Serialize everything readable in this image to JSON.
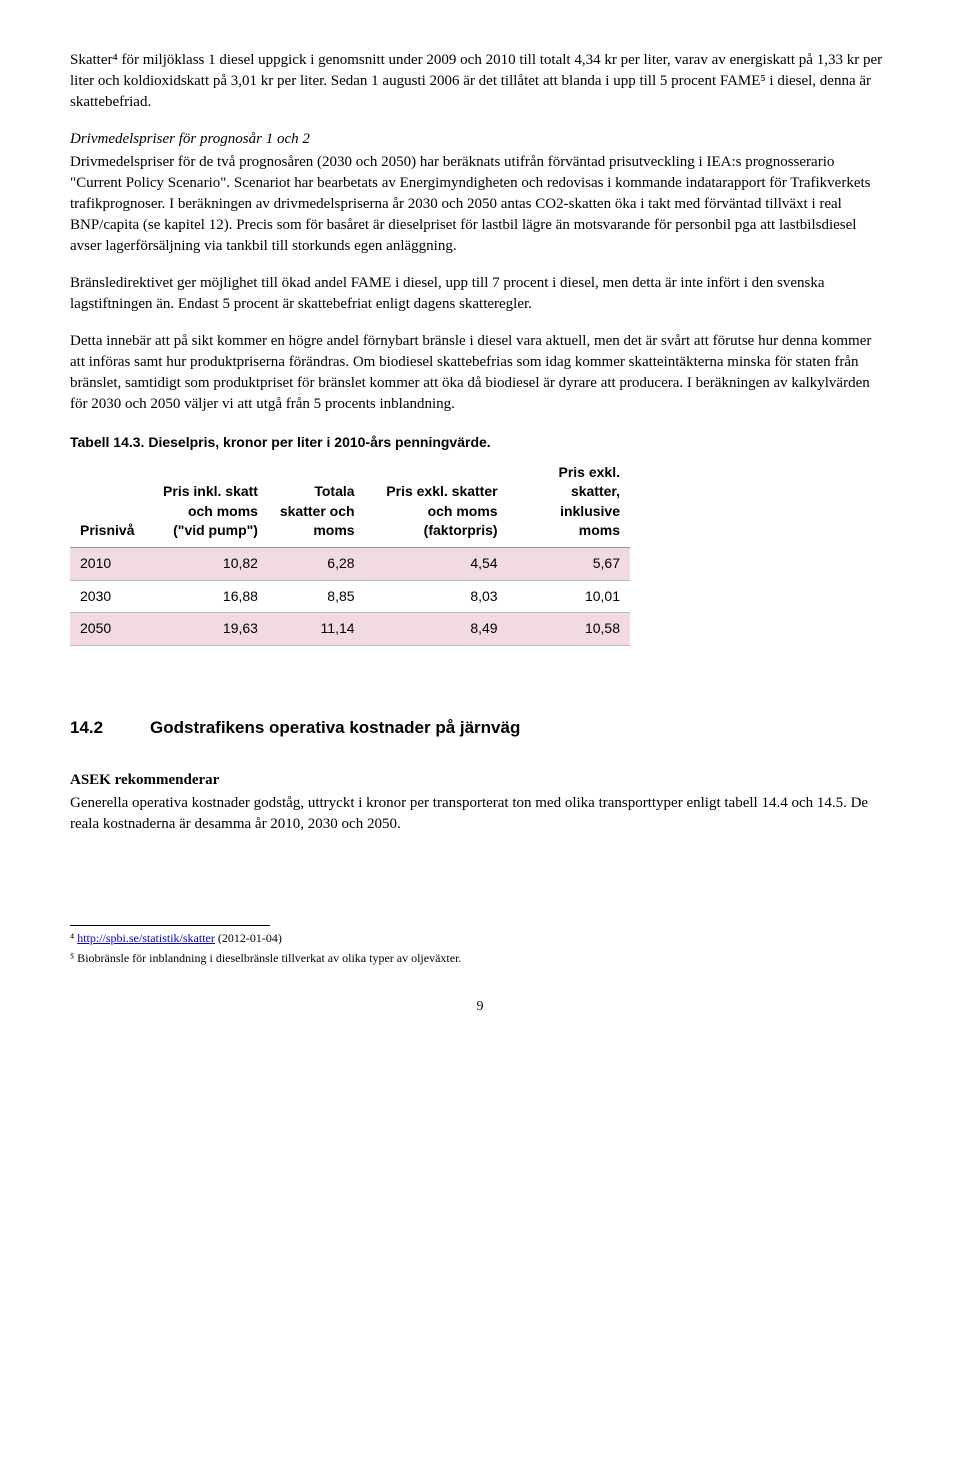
{
  "p1": "Skatter⁴ för miljöklass 1 diesel uppgick i genomsnitt under 2009 och 2010 till totalt 4,34 kr per liter, varav av energiskatt på 1,33 kr per liter och koldioxidskatt på 3,01 kr per liter. Sedan 1 augusti 2006 är det tillåtet att blanda i upp till 5 procent FAME⁵ i diesel, denna är skattebefriad.",
  "sub1": "Drivmedelspriser för prognosår 1 och 2",
  "p2": "Drivmedelspriser för de två prognosåren (2030 och 2050) har beräknats utifrån förväntad prisutveckling i IEA:s prognosserario \"Current Policy Scenario\". Scenariot har bearbetats av Energimyndigheten och redovisas i kommande indatarapport för Trafikverkets trafikprognoser. I beräkningen av drivmedelspriserna år 2030 och 2050 antas CO2-skatten öka i takt med förväntad tillväxt i real BNP/capita (se kapitel 12). Precis som för basåret är dieselpriset för lastbil lägre än motsvarande för personbil pga att lastbilsdiesel avser lagerförsäljning via tankbil till storkunds egen anläggning.",
  "p3": "Bränsledirektivet ger möjlighet till ökad andel FAME i diesel, upp till 7 procent i diesel, men detta är inte infört i den svenska lagstiftningen än. Endast 5 procent är skattebefriat enligt dagens skatteregler.",
  "p4": "Detta innebär att på sikt kommer en högre andel förnybart bränsle i diesel vara aktuell, men det är svårt att förutse hur denna kommer att införas samt hur produktpriserna förändras. Om biodiesel skattebefrias som idag kommer skatteintäkterna minska för staten från bränslet, samtidigt som produktpriset för bränslet kommer att öka då biodiesel är dyrare att producera. I beräkningen av kalkylvärden för 2030 och 2050 väljer vi att utgå från 5 procents inblandning.",
  "table": {
    "caption": "Tabell 14.3. Dieselpris, kronor per liter i 2010-års penningvärde.",
    "headers": [
      "Prisnivå",
      "Pris inkl. skatt och moms (\"vid pump\")",
      "Totala skatter och moms",
      "Pris exkl. skatter och moms (faktorpris)",
      "Pris exkl. skatter, inklusive moms"
    ],
    "rows": [
      {
        "cells": [
          "2010",
          "10,82",
          "6,28",
          "4,54",
          "5,67"
        ],
        "shaded": true
      },
      {
        "cells": [
          "2030",
          "16,88",
          "8,85",
          "8,03",
          "10,01"
        ],
        "shaded": false
      },
      {
        "cells": [
          "2050",
          "19,63",
          "11,14",
          "8,49",
          "10,58"
        ],
        "shaded": true
      }
    ]
  },
  "section": {
    "num": "14.2",
    "title": "Godstrafikens operativa kostnader på järnväg"
  },
  "rec_heading": "ASEK rekommenderar",
  "p5": "Generella operativa kostnader godståg, uttryckt i kronor per transporterat ton med olika transporttyper enligt tabell 14.4 och 14.5. De reala kostnaderna är desamma år 2010, 2030 och 2050.",
  "fn4_num": "⁴ ",
  "fn4_link": "http://spbi.se/statistik/skatter",
  "fn4_rest": " (2012-01-04)",
  "fn5": "⁵ Biobränsle för inblandning i dieselbränsle tillverkat av olika typer av oljeväxter.",
  "page_num": "9"
}
